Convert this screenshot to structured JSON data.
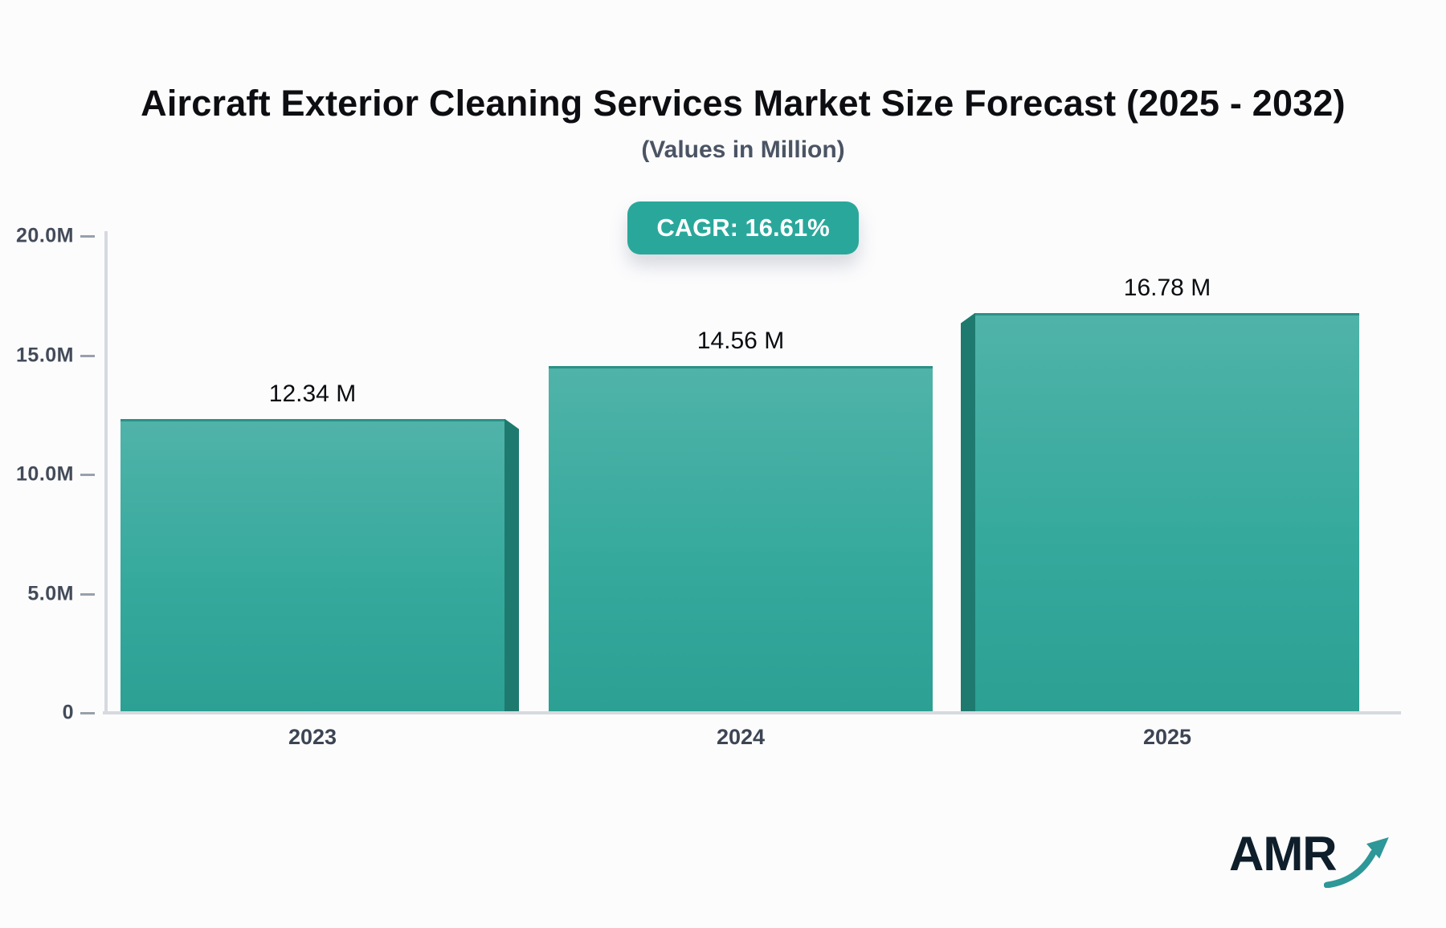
{
  "logo": {
    "text": "AMR"
  },
  "colors": {
    "accent_teal": "#2aa79b",
    "bar_face_top": "#50b3a9",
    "bar_face_bottom": "#2ba093",
    "bar_top_edge": "#2b9186",
    "bar_side_bevel": "#1e7a6f",
    "axis_line": "#d6d9de",
    "tick_mark": "#98a0ab",
    "axis_label": "#434b59",
    "value_label": "#0a0d10",
    "title_text": "#0d0e11",
    "subtitle_text": "#4b5463",
    "logo_navy": "#0e1e2a",
    "logo_arrow_teal": "#2e9798"
  },
  "chart_data": {
    "type": "bar",
    "title": "Aircraft Exterior Cleaning Services Market Size Forecast (2025 - 2032)",
    "subtitle": "(Values in Million)",
    "annotation": "CAGR: 16.61%",
    "categories": [
      "2023",
      "2024",
      "2025"
    ],
    "values": [
      12.34,
      14.56,
      16.78
    ],
    "value_labels": [
      "12.34 M",
      "14.56 M",
      "16.78 M"
    ],
    "xlabel": "",
    "ylabel": "",
    "ylim": [
      0,
      20
    ],
    "yticks": [
      {
        "value": 20,
        "label": "20.0M"
      },
      {
        "value": 15,
        "label": "15.0M"
      },
      {
        "value": 10,
        "label": "10.0M"
      },
      {
        "value": 5,
        "label": "5.0M"
      },
      {
        "value": 0,
        "label": "0"
      }
    ],
    "grid": false,
    "legend": false,
    "bar_style": {
      "effect": "3d-bevel",
      "bevel_sides": [
        "right",
        "none",
        "left"
      ]
    }
  }
}
